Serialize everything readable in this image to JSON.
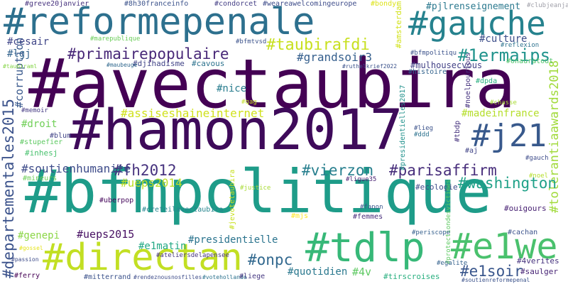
{
  "wordcloud": {
    "words": [
      {
        "key": "avectaubira",
        "text": "#avectaubira",
        "color": "#440154"
      },
      {
        "key": "hamon2017",
        "text": "#hamon2017",
        "color": "#3e0a5a"
      },
      {
        "key": "bfmpolitique",
        "text": "#bfmpolitique",
        "color": "#1e9c89"
      },
      {
        "key": "reformepenale",
        "text": "#reformepenale",
        "color": "#2d708e"
      },
      {
        "key": "gauche",
        "text": "#gauche",
        "color": "#26828e"
      },
      {
        "key": "directan",
        "text": "#directan",
        "color": "#c2df23"
      },
      {
        "key": "tdlp",
        "text": "#tdlp",
        "color": "#37b878"
      },
      {
        "key": "e1we",
        "text": "#e1we",
        "color": "#4ac16d"
      },
      {
        "key": "j21",
        "text": "#j21",
        "color": "#38598c"
      },
      {
        "key": "departementales2015",
        "text": "#departementales2015",
        "color": "#3b528b"
      },
      {
        "key": "primairepopulaire",
        "text": "#primairepopulaire",
        "color": "#482878"
      },
      {
        "key": "taubirafdi",
        "text": "#taubirafdi",
        "color": "#c8e020"
      },
      {
        "key": "1ermaips",
        "text": "#1ermaips",
        "color": "#20938c"
      },
      {
        "key": "fh2012",
        "text": "#fh2012",
        "color": "#46327e"
      },
      {
        "key": "vierzon",
        "text": "#vierzon",
        "color": "#277f8e"
      },
      {
        "key": "parisaffirm",
        "text": "#parisaffirm",
        "color": "#472d7b"
      },
      {
        "key": "washington",
        "text": "#washington",
        "color": "#1fa188"
      },
      {
        "key": "soutienhumanite",
        "text": "#soutienhumanite",
        "color": "#3e4c8a"
      },
      {
        "key": "e1soir",
        "text": "#e1soir",
        "color": "#39568c"
      },
      {
        "key": "onpc",
        "text": "#onpc",
        "color": "#31688e"
      },
      {
        "key": "assiseshaineinternet",
        "text": "#assiseshaineinternet",
        "color": "#d0e11c"
      },
      {
        "key": "ueps2014",
        "text": "#ueps2014",
        "color": "#bddf26"
      },
      {
        "key": "grandsoir3",
        "text": "#grandsoir3",
        "color": "#355f8d"
      },
      {
        "key": "tolerantiaawards2018",
        "text": "#tolerantiaawards2018",
        "color": "#a0da39"
      },
      {
        "key": "cesair",
        "text": "#cesair",
        "color": "#404688"
      },
      {
        "key": "pjlrenseignement",
        "text": "#pjlrenseignement",
        "color": "#2a788e"
      },
      {
        "key": "culture",
        "text": "#culture",
        "color": "#3d4e8a"
      },
      {
        "key": "lgj",
        "text": "#lgj",
        "color": "#33638d"
      },
      {
        "key": "corruption",
        "text": "#corruption",
        "color": "#38588c"
      },
      {
        "key": "nice",
        "text": "#nice",
        "color": "#287c8e"
      },
      {
        "key": "droit",
        "text": "#droit",
        "color": "#70cf57"
      },
      {
        "key": "quotidien",
        "text": "#quotidien",
        "color": "#2a788e"
      },
      {
        "key": "4v",
        "text": "#4v",
        "color": "#5ec962"
      },
      {
        "key": "ueps2015",
        "text": "#ueps2015",
        "color": "#471063"
      },
      {
        "key": "genepi",
        "text": "#genepi",
        "color": "#8bd646"
      },
      {
        "key": "presidentielle",
        "text": "#presidentielle",
        "color": "#2b748e"
      },
      {
        "key": "e1matin",
        "text": "#e1matin",
        "color": "#22a884"
      },
      {
        "key": "madeinfrance",
        "text": "#madeinfrance",
        "color": "#b5de2b"
      },
      {
        "key": "mulhousecvous",
        "text": "#mulhousecvous",
        "color": "#424186"
      },
      {
        "key": "greve20janvier",
        "text": "#greve20janvier",
        "color": "#46327e"
      },
      {
        "key": "8h30franceinfo",
        "text": "#8h30franceinfo",
        "color": "#3b528b"
      },
      {
        "key": "condorcet",
        "text": "#condorcet",
        "color": "#433e85"
      },
      {
        "key": "weareawelcomingeurope",
        "text": "#weareawelcomingeurope",
        "color": "#3e4c8a"
      },
      {
        "key": "bondy",
        "text": "#bondy",
        "color": "#dde318"
      },
      {
        "key": "amsterdam",
        "text": "#amsterdam",
        "color": "#d2e21b"
      },
      {
        "key": "clubjeanjaure",
        "text": "#clubjeanjaure",
        "color": "#9f9fa8"
      },
      {
        "key": "reflexion",
        "text": "#reflexion",
        "color": "#2c718e"
      },
      {
        "key": "bfmpolitiqu",
        "text": "#bfmpolitiqu",
        "color": "#3b528b"
      },
      {
        "key": "marepublique",
        "text": "#marepublique",
        "color": "#6ccd5a"
      },
      {
        "key": "bfmtvsd",
        "text": "#bfmtvsd",
        "color": "#3b528b"
      },
      {
        "key": "djihadisme",
        "text": "#djihadisme",
        "color": "#414487"
      },
      {
        "key": "cavous",
        "text": "#cavous",
        "color": "#2c728e"
      },
      {
        "key": "maubeuge",
        "text": "#maubeuge",
        "color": "#31688e"
      },
      {
        "key": "taubiraml",
        "text": "#taubiraml",
        "color": "#86d549"
      },
      {
        "key": "ruthelkrief2022",
        "text": "#ruthelkrief2022",
        "color": "#3b528b"
      },
      {
        "key": "histoire",
        "text": "#histoire",
        "color": "#33638d"
      },
      {
        "key": "onauratout",
        "text": "#onauratout",
        "color": "#50c46a"
      },
      {
        "key": "noelpourtous",
        "text": "#noelpourtous",
        "color": "#46337f"
      },
      {
        "key": "dpda",
        "text": "#dpda",
        "color": "#29af7f"
      },
      {
        "key": "memoir",
        "text": "#memoir",
        "color": "#443983"
      },
      {
        "key": "qag",
        "text": "#qag",
        "color": "#c2df23"
      },
      {
        "key": "chasse",
        "text": "#chasse",
        "color": "#a8db34"
      },
      {
        "key": "presidentielles2017",
        "text": "#presidentielles2017",
        "color": "#21918c"
      },
      {
        "key": "blum",
        "text": "#blum",
        "color": "#414487"
      },
      {
        "key": "stupefier",
        "text": "#stupefier",
        "color": "#5ec962"
      },
      {
        "key": "lieg",
        "text": "#lieg",
        "color": "#3b528b"
      },
      {
        "key": "ddd",
        "text": "#ddd",
        "color": "#2c728e"
      },
      {
        "key": "tbdp",
        "text": "#tbdp",
        "color": "#46327e"
      },
      {
        "key": "inhesj",
        "text": "#inhesj",
        "color": "#48c16e"
      },
      {
        "key": "aj",
        "text": "#aj",
        "color": "#414487"
      },
      {
        "key": "gauch",
        "text": "#gauch",
        "color": "#3e4c8a"
      },
      {
        "key": "mineurs",
        "text": "#mineurs",
        "color": "#6ece58"
      },
      {
        "key": "justice",
        "text": "#justice",
        "color": "#a8db34"
      },
      {
        "key": "ligue35",
        "text": "#ligue35",
        "color": "#482173"
      },
      {
        "key": "uberpop",
        "text": "#uberpop",
        "color": "#46085c"
      },
      {
        "key": "creteilavectaubira",
        "text": "#creteilavectaubira",
        "color": "#25858e"
      },
      {
        "key": "jevotetaubira",
        "text": "#jevotetaubira",
        "color": "#c8e020"
      },
      {
        "key": "ecologie",
        "text": "#ecologie",
        "color": "#3e4c8a"
      },
      {
        "key": "noel",
        "text": "#noel",
        "color": "#b5de2b"
      },
      {
        "key": "ouigours",
        "text": "#ouigours",
        "color": "#482173"
      },
      {
        "key": "fanon",
        "text": "#fanon",
        "color": "#39568c"
      },
      {
        "key": "femmes",
        "text": "#femmes",
        "color": "#472d7b"
      },
      {
        "key": "protectiondesvictimes",
        "text": "#protectiondesvictimes",
        "color": "#5ec962"
      },
      {
        "key": "cachan",
        "text": "#cachan",
        "color": "#3b528b"
      },
      {
        "key": "mjs",
        "text": "#mjs",
        "color": "#fde725"
      },
      {
        "key": "periscope",
        "text": "#periscope",
        "color": "#35608d"
      },
      {
        "key": "gossel",
        "text": "#gossel",
        "color": "#e5e419"
      },
      {
        "key": "ateliersdelapensee",
        "text": "#ateliersdelapensee",
        "color": "#46327e"
      },
      {
        "key": "egalite",
        "text": "#egalite",
        "color": "#34618d"
      },
      {
        "key": "4verites",
        "text": "#4verites",
        "color": "#46327e"
      },
      {
        "key": "passion",
        "text": "#passion",
        "color": "#3e4c8a"
      },
      {
        "key": "saulger",
        "text": "#saulger",
        "color": "#482576"
      },
      {
        "key": "ferry",
        "text": "#ferry",
        "color": "#440154"
      },
      {
        "key": "mitterrand",
        "text": "#mitterrand",
        "color": "#3b528b"
      },
      {
        "key": "rendeznousnosfilles",
        "text": "#rendeznousnosfilles",
        "color": "#3e4c8a"
      },
      {
        "key": "votehollande",
        "text": "#votehollande",
        "color": "#2c728e"
      },
      {
        "key": "liege",
        "text": "#liege",
        "color": "#453781"
      },
      {
        "key": "tirscroises",
        "text": "#tirscroises",
        "color": "#29af7f"
      },
      {
        "key": "soutienreformepenal",
        "text": "#soutienreformepenal",
        "color": "#3b528b"
      }
    ]
  }
}
